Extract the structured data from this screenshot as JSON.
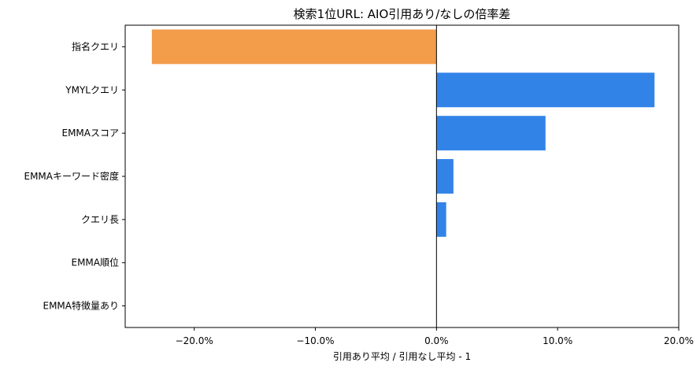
{
  "chart_data": {
    "type": "bar",
    "orientation": "horizontal",
    "title": "検索1位URL: AIO引用あり/なしの倍率差",
    "xlabel": "引用あり平均 / 引用なし平均 - 1",
    "ylabel": "",
    "categories": [
      "指名クエリ",
      "YMYLクエリ",
      "EMMAスコア",
      "EMMAキーワード密度",
      "クエリ長",
      "EMMA順位",
      "EMMA特徴量あり"
    ],
    "values": [
      -0.235,
      0.18,
      0.09,
      0.014,
      0.008,
      0.0,
      0.0
    ],
    "xlim": [
      -0.257,
      0.2
    ],
    "xticks": [
      -0.2,
      -0.1,
      0.0,
      0.1,
      0.2
    ],
    "xtick_labels": [
      "−20.0%",
      "−10.0%",
      "0.0%",
      "10.0%",
      "20.0%"
    ],
    "colors": {
      "positive": "#3283e8",
      "negative": "#f39c4a"
    },
    "zero_line": true,
    "grid": false,
    "legend": "none"
  }
}
